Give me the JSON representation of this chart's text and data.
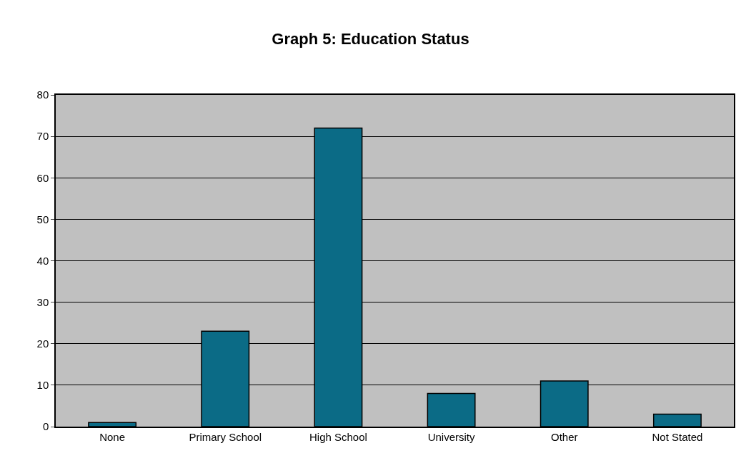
{
  "chart_data": {
    "type": "bar",
    "title": "Graph 5: Education Status",
    "categories": [
      "None",
      "Primary School",
      "High School",
      "University",
      "Other",
      "Not Stated"
    ],
    "values": [
      1,
      23,
      72,
      8,
      11,
      3
    ],
    "color": "#0b6b86",
    "ylim": [
      0,
      80
    ],
    "yticks": [
      0,
      10,
      20,
      30,
      40,
      50,
      60,
      70,
      80
    ],
    "grid": "y"
  }
}
